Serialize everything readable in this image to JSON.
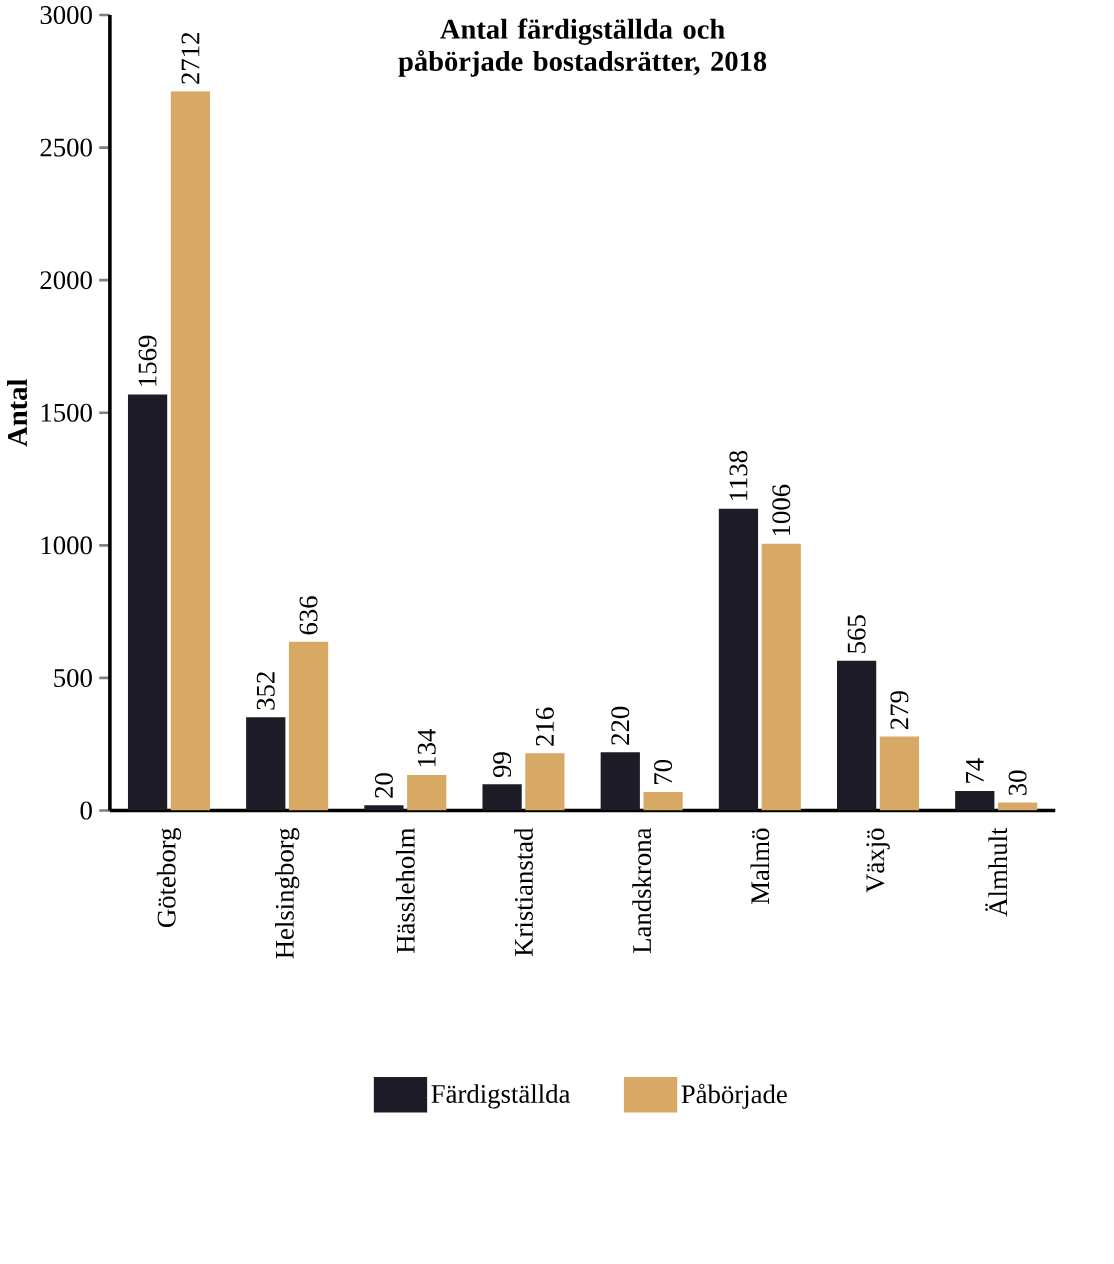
{
  "chart_data": {
    "type": "bar",
    "title": "Antal färdigställda och påbörjade bostadsrätter, 2018",
    "ylabel": "Antal",
    "categories": [
      "Göteborg",
      "Helsingborg",
      "Hässleholm",
      "Kristianstad",
      "Landskrona",
      "Malmö",
      "Växjö",
      "Älmhult"
    ],
    "series": [
      {
        "name": "Färdigställda",
        "color": "#1c1b26",
        "values": [
          1569,
          352,
          20,
          99,
          220,
          1138,
          565,
          74
        ]
      },
      {
        "name": "Påbörjade",
        "color": "#d7a965",
        "values": [
          2712,
          636,
          134,
          216,
          70,
          1006,
          279,
          30
        ]
      }
    ],
    "ylim": [
      0,
      3000
    ],
    "yticks": [
      0,
      500,
      1000,
      1500,
      2000,
      2500,
      3000
    ],
    "data_labels": true,
    "legend": "bottom"
  }
}
